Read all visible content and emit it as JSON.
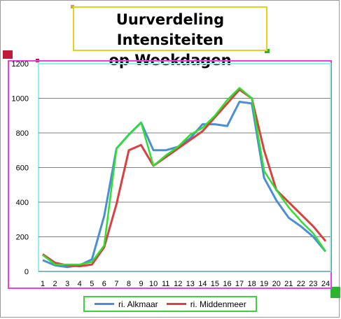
{
  "title": {
    "line1": "Uurverdeling Intensiteiten",
    "line2": "op Weekdagen"
  },
  "colors": {
    "title_border": "#e5d21f",
    "plot_border": "#e640e6",
    "plot_area_border": "#8ef0f0",
    "legend_border": "#3cd33c",
    "selection_green": "#2db32d",
    "selection_red": "#c2183a"
  },
  "chart_data": {
    "type": "line",
    "title": "Uurverdeling Intensiteiten op Weekdagen",
    "xlabel": "",
    "ylabel": "",
    "categories": [
      "1",
      "2",
      "3",
      "4",
      "5",
      "6",
      "7",
      "8",
      "9",
      "10",
      "11",
      "12",
      "13",
      "14",
      "15",
      "16",
      "17",
      "18",
      "19",
      "20",
      "21",
      "22",
      "23",
      "24"
    ],
    "yticks": [
      0,
      200,
      400,
      600,
      800,
      1000,
      1200
    ],
    "ylim": [
      0,
      1200
    ],
    "grid": true,
    "legend_position": "bottom",
    "series": [
      {
        "name": "ri. Alkmaar",
        "color": "#4a8fd6",
        "values": [
          65,
          35,
          25,
          35,
          70,
          320,
          710,
          790,
          860,
          700,
          700,
          720,
          770,
          850,
          850,
          840,
          980,
          970,
          540,
          410,
          310,
          260,
          200,
          115
        ]
      },
      {
        "name": "ri. Middenmeer",
        "color": "#d94040",
        "values": [
          100,
          50,
          35,
          30,
          40,
          140,
          390,
          700,
          730,
          610,
          660,
          710,
          760,
          810,
          890,
          970,
          1050,
          1000,
          700,
          470,
          400,
          330,
          260,
          175
        ]
      },
      {
        "name": "",
        "color": "#2ee02e",
        "values": [
          95,
          40,
          40,
          40,
          55,
          150,
          710,
          790,
          860,
          610,
          670,
          720,
          790,
          830,
          900,
          990,
          1060,
          1000,
          580,
          470,
          370,
          290,
          220,
          115
        ]
      }
    ]
  }
}
